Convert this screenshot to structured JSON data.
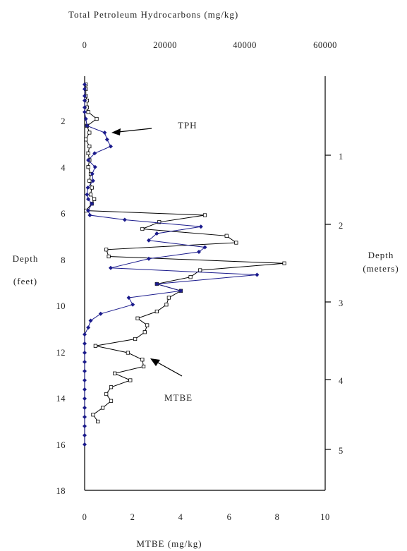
{
  "chart_data": {
    "type": "line",
    "title": "",
    "top_axis": {
      "label": "Total Petroleum Hydrocarbons (mg/kg)",
      "range": [
        0,
        60000
      ],
      "ticks": [
        "0",
        "20000",
        "40000",
        "60000"
      ]
    },
    "bottom_axis": {
      "label": "MTBE (mg/kg)",
      "range": [
        0,
        10
      ],
      "ticks": [
        "0",
        "2",
        "4",
        "6",
        "8",
        "10"
      ]
    },
    "left_axis": {
      "label_line1": "Depth",
      "label_line2": "(feet)",
      "range": [
        0,
        18
      ],
      "reversed": true,
      "ticks": [
        "2",
        "4",
        "6",
        "8",
        "10",
        "12",
        "14",
        "16",
        "18"
      ]
    },
    "right_axis": {
      "label_line1": "Depth",
      "label_line2": "(meters)",
      "ticks": [
        "1",
        "2",
        "3",
        "4",
        "5"
      ]
    },
    "annotations": {
      "tph": "TPH",
      "mtbe": "MTBE"
    },
    "colors": {
      "tph": "#1a1a8c",
      "mtbe": "#000000",
      "mtbe_marker_fill": "#ffffff"
    },
    "series": [
      {
        "name": "TPH",
        "axis": "top",
        "points": [
          [
            0,
            0.3
          ],
          [
            0,
            0.5
          ],
          [
            0,
            0.8
          ],
          [
            0,
            1.0
          ],
          [
            0,
            1.3
          ],
          [
            0,
            1.5
          ],
          [
            300,
            1.8
          ],
          [
            600,
            2.1
          ],
          [
            5000,
            2.4
          ],
          [
            5600,
            2.7
          ],
          [
            6500,
            3.0
          ],
          [
            2500,
            3.3
          ],
          [
            900,
            3.6
          ],
          [
            2600,
            3.9
          ],
          [
            1900,
            4.2
          ],
          [
            2100,
            4.5
          ],
          [
            800,
            4.8
          ],
          [
            600,
            5.1
          ],
          [
            900,
            5.3
          ],
          [
            1800,
            5.5
          ],
          [
            900,
            5.8
          ],
          [
            1300,
            6.0
          ],
          [
            10000,
            6.2
          ],
          [
            29000,
            6.5
          ],
          [
            18000,
            6.8
          ],
          [
            16000,
            7.1
          ],
          [
            30000,
            7.4
          ],
          [
            28500,
            7.6
          ],
          [
            16000,
            7.9
          ],
          [
            6500,
            8.3
          ],
          [
            43000,
            8.6
          ],
          [
            18000,
            9.0
          ],
          [
            24000,
            9.3
          ],
          [
            11000,
            9.6
          ],
          [
            12000,
            9.9
          ],
          [
            4000,
            10.3
          ],
          [
            1500,
            10.6
          ],
          [
            900,
            10.9
          ],
          [
            0,
            11.2
          ],
          [
            0,
            11.6
          ],
          [
            0,
            12.0
          ],
          [
            0,
            12.4
          ],
          [
            0,
            12.8
          ],
          [
            0,
            13.2
          ],
          [
            0,
            13.6
          ],
          [
            0,
            14.0
          ],
          [
            0,
            14.4
          ],
          [
            0,
            14.8
          ],
          [
            0,
            15.2
          ],
          [
            0,
            15.6
          ],
          [
            0,
            16.0
          ]
        ]
      },
      {
        "name": "MTBE",
        "axis": "bottom",
        "points": [
          [
            0.05,
            0.3
          ],
          [
            0.05,
            0.5
          ],
          [
            0.05,
            0.8
          ],
          [
            0.1,
            1.0
          ],
          [
            0.1,
            1.3
          ],
          [
            0.15,
            1.5
          ],
          [
            0.5,
            1.8
          ],
          [
            0.1,
            2.1
          ],
          [
            0.2,
            2.4
          ],
          [
            0.05,
            2.7
          ],
          [
            0.2,
            3.0
          ],
          [
            0.15,
            3.3
          ],
          [
            0.2,
            3.6
          ],
          [
            0.15,
            3.9
          ],
          [
            0.25,
            4.2
          ],
          [
            0.2,
            4.5
          ],
          [
            0.3,
            4.8
          ],
          [
            0.25,
            5.1
          ],
          [
            0.4,
            5.3
          ],
          [
            0.3,
            5.5
          ],
          [
            0.05,
            5.8
          ],
          [
            5.0,
            6.0
          ],
          [
            3.1,
            6.3
          ],
          [
            2.4,
            6.6
          ],
          [
            5.9,
            6.9
          ],
          [
            6.3,
            7.2
          ],
          [
            0.9,
            7.5
          ],
          [
            1.0,
            7.8
          ],
          [
            8.3,
            8.1
          ],
          [
            4.8,
            8.4
          ],
          [
            4.4,
            8.7
          ],
          [
            3.0,
            9.0
          ],
          [
            4.0,
            9.3
          ],
          [
            3.5,
            9.6
          ],
          [
            3.4,
            9.9
          ],
          [
            3.0,
            10.2
          ],
          [
            2.2,
            10.5
          ],
          [
            2.6,
            10.8
          ],
          [
            2.5,
            11.1
          ],
          [
            2.1,
            11.4
          ],
          [
            0.45,
            11.7
          ],
          [
            1.8,
            12.0
          ],
          [
            2.4,
            12.3
          ],
          [
            2.45,
            12.6
          ],
          [
            1.25,
            12.9
          ],
          [
            1.9,
            13.2
          ],
          [
            1.1,
            13.5
          ],
          [
            0.9,
            13.8
          ],
          [
            1.1,
            14.1
          ],
          [
            0.75,
            14.4
          ],
          [
            0.35,
            14.7
          ],
          [
            0.55,
            15.0
          ]
        ]
      }
    ]
  }
}
